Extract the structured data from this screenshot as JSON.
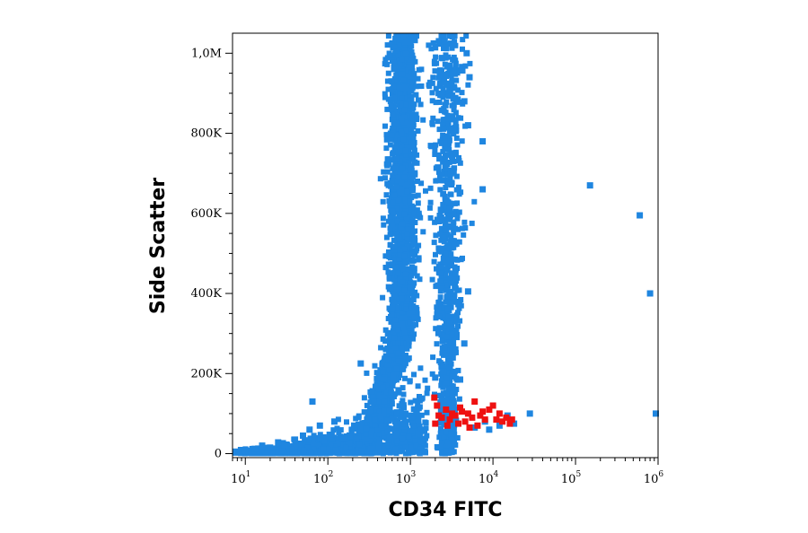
{
  "chart_data": {
    "type": "scatter",
    "title": "",
    "xlabel": "CD34 FITC",
    "ylabel": "Side Scatter",
    "x_scale": "log",
    "xlim": [
      7,
      1000000
    ],
    "ylim": [
      -10000,
      1050000
    ],
    "x_ticks": [
      {
        "value": 10,
        "base": "10",
        "exp": "1"
      },
      {
        "value": 100,
        "base": "10",
        "exp": "2"
      },
      {
        "value": 1000,
        "base": "10",
        "exp": "3"
      },
      {
        "value": 10000,
        "base": "10",
        "exp": "4"
      },
      {
        "value": 100000,
        "base": "10",
        "exp": "5"
      },
      {
        "value": 1000000,
        "base": "10",
        "exp": "6"
      }
    ],
    "y_ticks": [
      {
        "value": 0,
        "label": "0"
      },
      {
        "value": 200000,
        "label": "200K"
      },
      {
        "value": 400000,
        "label": "400K"
      },
      {
        "value": 600000,
        "label": "600K"
      },
      {
        "value": 800000,
        "label": "800K"
      },
      {
        "value": 1000000,
        "label": "1,0M"
      }
    ],
    "grid": false,
    "colors": {
      "main": "#1f86e0",
      "gated": "#ee1111",
      "axis": "#000000"
    },
    "series": [
      {
        "color": "#1f86e0",
        "points": [
          [
            7,
            5000
          ],
          [
            10,
            8000
          ],
          [
            13,
            12000
          ],
          [
            16,
            20000
          ],
          [
            20,
            15000
          ],
          [
            25,
            28000
          ],
          [
            30,
            22000
          ],
          [
            40,
            35000
          ],
          [
            50,
            45000
          ],
          [
            60,
            60000
          ],
          [
            65,
            130000
          ],
          [
            80,
            70000
          ],
          [
            120,
            80000
          ],
          [
            250,
            225000
          ],
          [
            2000,
            190000
          ],
          [
            2500,
            205000
          ],
          [
            3000,
            230000
          ],
          [
            4000,
            185000
          ],
          [
            3500,
            260000
          ],
          [
            4500,
            275000
          ],
          [
            5000,
            405000
          ],
          [
            3000,
            480000
          ],
          [
            2700,
            560000
          ],
          [
            3000,
            610000
          ],
          [
            3100,
            700000
          ],
          [
            3300,
            800000
          ],
          [
            5000,
            820000
          ],
          [
            7500,
            780000
          ],
          [
            7500,
            660000
          ],
          [
            4500,
            880000
          ],
          [
            5200,
            940000
          ],
          [
            4800,
            1000000
          ],
          [
            2600,
            1030000
          ],
          [
            150000,
            670000
          ],
          [
            600000,
            595000
          ],
          [
            800000,
            400000
          ],
          [
            1000000,
            100000
          ],
          [
            28000,
            100000
          ],
          [
            18000,
            75000
          ],
          [
            15000,
            95000
          ],
          [
            8000,
            80000
          ],
          [
            6000,
            65000
          ],
          [
            9000,
            60000
          ],
          [
            12000,
            70000
          ]
        ]
      },
      {
        "color": "#ee1111",
        "points": [
          [
            1950,
            140000
          ],
          [
            2100,
            120000
          ],
          [
            2000,
            75000
          ],
          [
            2400,
            90000
          ],
          [
            2700,
            110000
          ],
          [
            3000,
            85000
          ],
          [
            3200,
            100000
          ],
          [
            3500,
            95000
          ],
          [
            3800,
            75000
          ],
          [
            4200,
            105000
          ],
          [
            4600,
            80000
          ],
          [
            5000,
            100000
          ],
          [
            5600,
            90000
          ],
          [
            6000,
            130000
          ],
          [
            6500,
            70000
          ],
          [
            7000,
            95000
          ],
          [
            8000,
            85000
          ],
          [
            9000,
            110000
          ],
          [
            10000,
            120000
          ],
          [
            11000,
            85000
          ],
          [
            12000,
            100000
          ],
          [
            13000,
            80000
          ],
          [
            14500,
            90000
          ],
          [
            16000,
            75000
          ],
          [
            17000,
            85000
          ],
          [
            2200,
            95000
          ],
          [
            2800,
            70000
          ],
          [
            4000,
            115000
          ],
          [
            5200,
            65000
          ],
          [
            7500,
            105000
          ]
        ]
      }
    ],
    "density_clusters": [
      {
        "color": "#1f86e0",
        "count": 2600,
        "x_center": 800,
        "x_spread_log10": 0.08,
        "x_skew_at_low_y": 0.45,
        "y_range": [
          0,
          1050000
        ]
      },
      {
        "color": "#1f86e0",
        "count": 900,
        "x_center": 2800,
        "x_spread_log10": 0.09,
        "y_range": [
          0,
          1050000
        ]
      },
      {
        "color": "#1f86e0",
        "count": 1400,
        "x_range": [
          10,
          1500
        ],
        "y_range": [
          0,
          150000
        ]
      }
    ]
  }
}
